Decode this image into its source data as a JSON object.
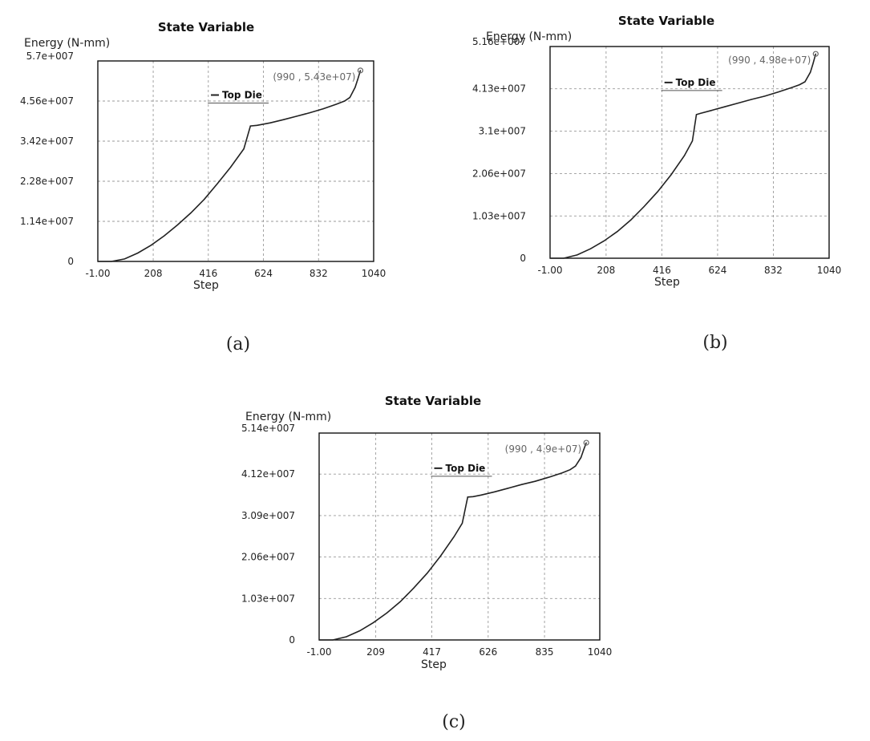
{
  "chart_data": [
    {
      "type": "line",
      "title": "State Variable",
      "ylabel": "Energy (N-mm)",
      "xlabel": "Step",
      "caption": "(a)",
      "x_ticks": [
        "-1.00",
        "208",
        "416",
        "624",
        "832",
        "1040"
      ],
      "x_tick_values": [
        -1,
        208,
        416,
        624,
        832,
        1040
      ],
      "y_ticks": [
        "0",
        "1.14e+007",
        "2.28e+007",
        "3.42e+007",
        "4.56e+007",
        "5.7e+007"
      ],
      "y_tick_values": [
        0,
        11400000,
        22800000,
        34200000,
        45600000,
        57000000
      ],
      "xlim": [
        -1,
        1040
      ],
      "ylim": [
        0,
        57000000
      ],
      "grid": true,
      "legend": {
        "label": "Top Die",
        "position": "top-center"
      },
      "annotation": {
        "text": "(990 , 5.43e+07)",
        "x": 990,
        "y": 54300000
      },
      "series": [
        {
          "name": "Top Die",
          "x": [
            -1,
            50,
            100,
            150,
            200,
            250,
            300,
            350,
            400,
            450,
            500,
            550,
            575,
            600,
            650,
            700,
            750,
            800,
            850,
            900,
            930,
            950,
            970,
            980,
            990
          ],
          "y": [
            0,
            0,
            700000,
            2400000,
            4600000,
            7300000,
            10400000,
            13800000,
            17600000,
            22100000,
            26800000,
            32000000,
            38500000,
            38700000,
            39400000,
            40300000,
            41300000,
            42300000,
            43400000,
            44700000,
            45600000,
            46600000,
            49500000,
            51800000,
            54300000
          ]
        }
      ]
    },
    {
      "type": "line",
      "title": "State Variable",
      "ylabel": "Energy (N-mm)",
      "xlabel": "Step",
      "caption": "(b)",
      "x_ticks": [
        "-1.00",
        "208",
        "416",
        "624",
        "832",
        "1040"
      ],
      "x_tick_values": [
        -1,
        208,
        416,
        624,
        832,
        1040
      ],
      "y_ticks": [
        "0",
        "1.03e+007",
        "2.06e+007",
        "3.1e+007",
        "4.13e+007",
        "5.16e+007"
      ],
      "y_tick_values": [
        0,
        10300000,
        20600000,
        31000000,
        41300000,
        51600000
      ],
      "xlim": [
        -1,
        1040
      ],
      "ylim": [
        0,
        51600000
      ],
      "grid": true,
      "legend": {
        "label": "Top Die",
        "position": "top-center"
      },
      "annotation": {
        "text": "(990 , 4.98e+07)",
        "x": 990,
        "y": 49800000
      },
      "series": [
        {
          "name": "Top Die",
          "x": [
            -1,
            50,
            100,
            150,
            200,
            250,
            300,
            350,
            400,
            450,
            500,
            530,
            545,
            560,
            600,
            650,
            700,
            750,
            800,
            850,
            900,
            930,
            950,
            970,
            980,
            990
          ],
          "y": [
            0,
            0,
            800000,
            2300000,
            4200000,
            6500000,
            9300000,
            12600000,
            16200000,
            20300000,
            25000000,
            28600000,
            35000000,
            35300000,
            36000000,
            36900000,
            37800000,
            38700000,
            39500000,
            40500000,
            41600000,
            42300000,
            43000000,
            45300000,
            47400000,
            49800000
          ]
        }
      ]
    },
    {
      "type": "line",
      "title": "State Variable",
      "ylabel": "Energy (N-mm)",
      "xlabel": "Step",
      "caption": "(c)",
      "x_ticks": [
        "-1.00",
        "209",
        "417",
        "626",
        "835",
        "1040"
      ],
      "x_tick_values": [
        -1,
        209,
        417,
        626,
        835,
        1040
      ],
      "y_ticks": [
        "0",
        "1.03e+007",
        "2.06e+007",
        "3.09e+007",
        "4.12e+007",
        "5.14e+007"
      ],
      "y_tick_values": [
        0,
        10300000,
        20600000,
        30900000,
        41200000,
        51400000
      ],
      "xlim": [
        -1,
        1040
      ],
      "ylim": [
        0,
        51400000
      ],
      "grid": true,
      "legend": {
        "label": "Top Die",
        "position": "top-center"
      },
      "annotation": {
        "text": "(990 , 4.9e+07)",
        "x": 990,
        "y": 49000000
      },
      "series": [
        {
          "name": "Top Die",
          "x": [
            -1,
            50,
            100,
            150,
            200,
            250,
            300,
            350,
            400,
            450,
            500,
            530,
            550,
            570,
            600,
            650,
            700,
            750,
            800,
            850,
            900,
            930,
            950,
            970,
            980,
            990
          ],
          "y": [
            0,
            0,
            800000,
            2300000,
            4300000,
            6700000,
            9500000,
            12900000,
            16600000,
            20900000,
            25700000,
            29000000,
            35500000,
            35600000,
            36000000,
            36800000,
            37700000,
            38600000,
            39400000,
            40400000,
            41500000,
            42300000,
            43200000,
            45300000,
            47200000,
            49000000
          ]
        }
      ]
    }
  ]
}
